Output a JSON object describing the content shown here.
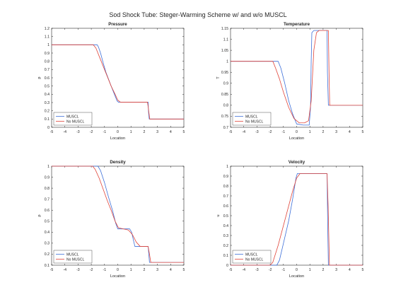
{
  "figure": {
    "title": "Sod Shock Tube: Steger-Warming Scheme w/ and w/o MUSCL"
  },
  "colors": {
    "muscl": "#3d6fd9",
    "no_muscl": "#e0453a",
    "axis": "#262626",
    "background": "#ffffff"
  },
  "chart_data": [
    {
      "type": "line",
      "title": "Pressure",
      "xlabel": "Location",
      "ylabel": "p",
      "xlim": [
        -5,
        5
      ],
      "ylim": [
        0,
        1.2
      ],
      "xticks": [
        -5,
        -4,
        -3,
        -2,
        -1,
        0,
        1,
        2,
        3,
        4,
        5
      ],
      "yticks": [
        0,
        0.1,
        0.2,
        0.3,
        0.4,
        0.5,
        0.6,
        0.7,
        0.8,
        0.9,
        1,
        1.1,
        1.2
      ],
      "ytick_labels": [
        "0",
        "0.1",
        "0.2",
        "0.3",
        "0.4",
        "0.5",
        "0.6",
        "0.7",
        "0.8",
        "0.9",
        "1",
        "1.1",
        "1.2"
      ],
      "grid": false,
      "legend": "bottom-left",
      "series": [
        {
          "name": "MUSCL",
          "color": "muscl",
          "x": [
            -5,
            -1.55,
            -1.45,
            -1.3,
            -1.1,
            -0.9,
            -0.5,
            -0.2,
            -0.05,
            0.05,
            2.3,
            2.32,
            2.38,
            5
          ],
          "y": [
            1,
            1,
            0.97,
            0.9,
            0.78,
            0.67,
            0.5,
            0.38,
            0.32,
            0.305,
            0.305,
            0.2,
            0.1,
            0.1
          ]
        },
        {
          "name": "No MUSCL",
          "color": "no_muscl",
          "x": [
            -5,
            -1.85,
            -1.65,
            -1.4,
            -1.1,
            -0.8,
            -0.5,
            -0.2,
            0,
            0.2,
            2.25,
            2.3,
            2.42,
            5
          ],
          "y": [
            1,
            1,
            0.96,
            0.86,
            0.74,
            0.62,
            0.5,
            0.4,
            0.33,
            0.305,
            0.305,
            0.25,
            0.1,
            0.1
          ]
        }
      ]
    },
    {
      "type": "line",
      "title": "Temperature",
      "xlabel": "Location",
      "ylabel": "T",
      "xlim": [
        -5,
        5
      ],
      "ylim": [
        0.7,
        1.15
      ],
      "xticks": [
        -5,
        -4,
        -3,
        -2,
        -1,
        0,
        1,
        2,
        3,
        4,
        5
      ],
      "yticks": [
        0.7,
        0.75,
        0.8,
        0.85,
        0.9,
        0.95,
        1,
        1.05,
        1.1,
        1.15
      ],
      "ytick_labels": [
        "0.7",
        "0.75",
        "0.8",
        "0.85",
        "0.9",
        "0.95",
        "1",
        "1.05",
        "1.1",
        "1.15"
      ],
      "grid": false,
      "legend": "bottom-left",
      "series": [
        {
          "name": "MUSCL",
          "color": "muscl",
          "x": [
            -5,
            -1.4,
            -1.2,
            -0.9,
            -0.6,
            -0.3,
            0,
            0.5,
            0.95,
            1.05,
            1.1,
            1.15,
            1.3,
            2.3,
            2.33,
            2.4,
            5
          ],
          "y": [
            1,
            1,
            0.97,
            0.9,
            0.82,
            0.76,
            0.715,
            0.71,
            0.71,
            0.79,
            1.0,
            1.13,
            1.14,
            1.14,
            0.95,
            0.8,
            0.8
          ]
        },
        {
          "name": "No MUSCL",
          "color": "no_muscl",
          "x": [
            -5,
            -1.8,
            -1.6,
            -1.3,
            -1.0,
            -0.6,
            -0.2,
            0.2,
            0.6,
            0.9,
            1.1,
            1.3,
            1.5,
            1.7,
            2.2,
            2.4,
            2.45,
            2.5,
            5
          ],
          "y": [
            1,
            1,
            0.97,
            0.92,
            0.86,
            0.79,
            0.74,
            0.72,
            0.72,
            0.73,
            0.82,
            1.05,
            1.13,
            1.14,
            1.14,
            1.14,
            0.95,
            0.8,
            0.8
          ]
        }
      ]
    },
    {
      "type": "line",
      "title": "Density",
      "xlabel": "Location",
      "ylabel": "ρ",
      "xlim": [
        -5,
        5
      ],
      "ylim": [
        0.1,
        1
      ],
      "xticks": [
        -5,
        -4,
        -3,
        -2,
        -1,
        0,
        1,
        2,
        3,
        4,
        5
      ],
      "yticks": [
        0.1,
        0.2,
        0.3,
        0.4,
        0.5,
        0.6,
        0.7,
        0.8,
        0.9,
        1
      ],
      "ytick_labels": [
        "0.1",
        "0.2",
        "0.3",
        "0.4",
        "0.5",
        "0.6",
        "0.7",
        "0.8",
        "0.9",
        "1"
      ],
      "grid": false,
      "legend": "bottom-left",
      "series": [
        {
          "name": "MUSCL",
          "color": "muscl",
          "x": [
            -5,
            -1.5,
            -1.3,
            -1.0,
            -0.7,
            -0.4,
            -0.15,
            0,
            0.9,
            1.05,
            1.2,
            1.3,
            2.3,
            2.35,
            2.4,
            5
          ],
          "y": [
            1,
            1,
            0.96,
            0.85,
            0.72,
            0.6,
            0.48,
            0.43,
            0.43,
            0.4,
            0.32,
            0.27,
            0.27,
            0.2,
            0.125,
            0.125
          ]
        },
        {
          "name": "No MUSCL",
          "color": "no_muscl",
          "x": [
            -5,
            -1.9,
            -1.7,
            -1.4,
            -1.1,
            -0.8,
            -0.5,
            -0.2,
            0.05,
            0.4,
            0.8,
            1.1,
            1.4,
            1.7,
            2.3,
            2.4,
            2.5,
            5
          ],
          "y": [
            1,
            1,
            0.97,
            0.89,
            0.79,
            0.69,
            0.6,
            0.5,
            0.44,
            0.43,
            0.42,
            0.38,
            0.31,
            0.27,
            0.27,
            0.2,
            0.125,
            0.125
          ]
        }
      ]
    },
    {
      "type": "line",
      "title": "Velocity",
      "xlabel": "Location",
      "ylabel": "u",
      "xlim": [
        -5,
        5
      ],
      "ylim": [
        0,
        1
      ],
      "xticks": [
        -5,
        -4,
        -3,
        -2,
        -1,
        0,
        1,
        2,
        3,
        4,
        5
      ],
      "yticks": [
        0,
        0.1,
        0.2,
        0.3,
        0.4,
        0.5,
        0.6,
        0.7,
        0.8,
        0.9,
        1
      ],
      "ytick_labels": [
        "0",
        "0.1",
        "0.2",
        "0.3",
        "0.4",
        "0.5",
        "0.6",
        "0.7",
        "0.8",
        "0.9",
        "1"
      ],
      "grid": false,
      "legend": "bottom-left",
      "series": [
        {
          "name": "MUSCL",
          "color": "muscl",
          "x": [
            -5,
            -1.5,
            -1.3,
            -1.0,
            -0.6,
            -0.3,
            -0.05,
            0.05,
            2.3,
            2.35,
            2.4,
            5
          ],
          "y": [
            0,
            0,
            0.05,
            0.22,
            0.45,
            0.67,
            0.88,
            0.925,
            0.925,
            0.4,
            0,
            0
          ]
        },
        {
          "name": "No MUSCL",
          "color": "no_muscl",
          "x": [
            -5,
            -2.0,
            -1.8,
            -1.4,
            -1.0,
            -0.6,
            -0.3,
            0,
            0.25,
            2.3,
            2.38,
            2.48,
            5
          ],
          "y": [
            0,
            0,
            0.03,
            0.2,
            0.4,
            0.6,
            0.75,
            0.88,
            0.925,
            0.925,
            0.6,
            0,
            0
          ]
        }
      ]
    }
  ]
}
